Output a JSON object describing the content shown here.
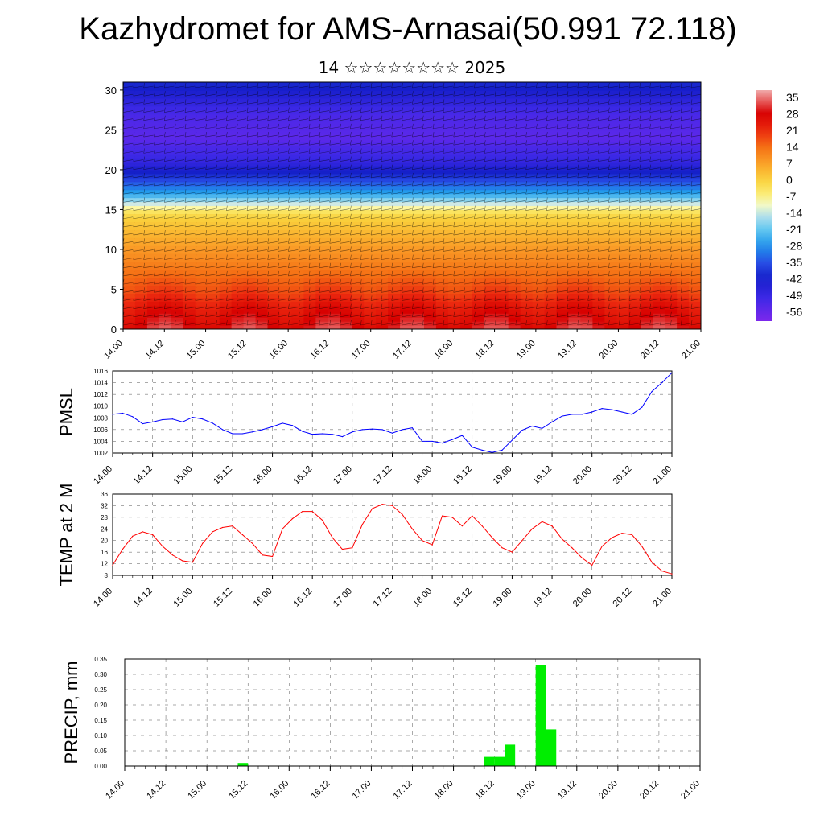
{
  "title": "Kazhydromet for AMS-Arnasai(50.991 72.118)",
  "subtitle": "14 ☆☆☆☆☆☆☆☆ 2025",
  "x_tick_labels": [
    "14.00",
    "14.12",
    "15.00",
    "15.12",
    "16.00",
    "16.12",
    "17.00",
    "17.12",
    "18.00",
    "18.12",
    "19.00",
    "19.12",
    "20.00",
    "20.12",
    "21.00"
  ],
  "colors": {
    "pmsl": "#0000ff",
    "temp": "#ff0000",
    "precip": "#00ee00",
    "grid": "#555555"
  },
  "chart_data": [
    {
      "type": "heatmap",
      "title": "",
      "xlabel": "",
      "ylabel": "",
      "y_ticks": [
        0,
        5,
        10,
        15,
        20,
        25,
        30
      ],
      "ylim": [
        0,
        31
      ],
      "colorbar_labels": [
        "35",
        "28",
        "21",
        "14",
        "7",
        "0",
        "-7",
        "-14",
        "-21",
        "-28",
        "-35",
        "-42",
        "-49",
        "-56"
      ],
      "colorbar_range": [
        -60,
        38
      ],
      "levels": [
        0,
        3,
        5,
        8,
        10,
        12,
        14,
        15,
        16,
        17,
        19,
        21,
        24,
        27,
        29,
        31
      ],
      "temperature_by_level": [
        30,
        24,
        18,
        12,
        8,
        4,
        0,
        -6,
        -16,
        -26,
        -38,
        -48,
        -55,
        -52,
        -46,
        -40
      ],
      "overlay": "wind barbs"
    },
    {
      "type": "line",
      "ylabel": "PMSL",
      "ylim": [
        1002,
        1016
      ],
      "y_ticks": [
        1002,
        1004,
        1006,
        1008,
        1010,
        1012,
        1014,
        1016
      ],
      "x_hours": [
        0,
        3,
        6,
        9,
        12,
        15,
        18,
        21,
        24,
        27,
        30,
        33,
        36,
        39,
        42,
        45,
        48,
        51,
        54,
        57,
        60,
        63,
        66,
        69,
        72,
        75,
        78,
        81,
        84,
        87,
        90,
        93,
        96,
        99,
        102,
        105,
        108,
        111,
        114,
        117,
        120,
        123,
        126,
        129,
        132,
        135,
        138,
        141,
        144,
        147,
        150,
        153,
        156,
        159,
        162,
        165,
        168
      ],
      "values": [
        1008.6,
        1008.8,
        1008.2,
        1007.0,
        1007.3,
        1007.7,
        1007.8,
        1007.3,
        1008.1,
        1007.8,
        1007.1,
        1006.0,
        1005.3,
        1005.3,
        1005.6,
        1006.0,
        1006.5,
        1007.1,
        1006.7,
        1005.7,
        1005.2,
        1005.3,
        1005.2,
        1004.8,
        1005.6,
        1006.0,
        1006.1,
        1006.0,
        1005.4,
        1006.0,
        1006.3,
        1004.0,
        1004.0,
        1003.7,
        1004.3,
        1005.0,
        1003.0,
        1002.5,
        1002.1,
        1002.5,
        1004.2,
        1005.9,
        1006.6,
        1006.2,
        1007.3,
        1008.3,
        1008.6,
        1008.6,
        1009.0,
        1009.6,
        1009.4,
        1009.0,
        1008.6,
        1009.8,
        1012.5,
        1014.0,
        1015.7
      ]
    },
    {
      "type": "line",
      "ylabel": "TEMP at 2 M",
      "ylim": [
        8,
        36
      ],
      "y_ticks": [
        8,
        12,
        16,
        20,
        24,
        28,
        32,
        36
      ],
      "x_hours": [
        0,
        3,
        6,
        9,
        12,
        15,
        18,
        21,
        24,
        27,
        30,
        33,
        36,
        39,
        42,
        45,
        48,
        51,
        54,
        57,
        60,
        63,
        66,
        69,
        72,
        75,
        78,
        81,
        84,
        87,
        90,
        93,
        96,
        99,
        102,
        105,
        108,
        111,
        114,
        117,
        120,
        123,
        126,
        129,
        132,
        135,
        138,
        141,
        144,
        147,
        150,
        153,
        156,
        159,
        162,
        165,
        168
      ],
      "values": [
        11.5,
        17.0,
        21.5,
        23.0,
        22.0,
        18.0,
        15.0,
        13.0,
        12.5,
        19.0,
        23.0,
        24.5,
        25.0,
        22.0,
        19.0,
        15.0,
        14.5,
        24.0,
        27.5,
        30.0,
        30.0,
        27.0,
        21.0,
        17.0,
        17.5,
        25.5,
        31.0,
        32.5,
        32.0,
        29.0,
        24.0,
        20.0,
        18.5,
        28.5,
        28.0,
        25.0,
        28.5,
        25.0,
        21.0,
        17.5,
        16.0,
        20.0,
        24.0,
        26.5,
        25.0,
        20.5,
        17.5,
        14.0,
        11.5,
        18.0,
        21.0,
        22.5,
        22.0,
        18.0,
        12.5,
        9.5,
        8.5
      ]
    },
    {
      "type": "bar",
      "ylabel": "PRECIP, mm",
      "ylim": [
        0,
        0.35
      ],
      "y_ticks": [
        "0.00",
        "0.05",
        "0.10",
        "0.15",
        "0.20",
        "0.25",
        "0.30",
        "0.35"
      ],
      "bars": [
        {
          "x_hours": [
            33,
            36
          ],
          "value": 0.01
        },
        {
          "x_hours": [
            105,
            108
          ],
          "value": 0.03
        },
        {
          "x_hours": [
            108,
            111
          ],
          "value": 0.03
        },
        {
          "x_hours": [
            111,
            114
          ],
          "value": 0.07
        },
        {
          "x_hours": [
            120,
            123
          ],
          "value": 0.33
        },
        {
          "x_hours": [
            123,
            126
          ],
          "value": 0.12
        }
      ]
    }
  ]
}
